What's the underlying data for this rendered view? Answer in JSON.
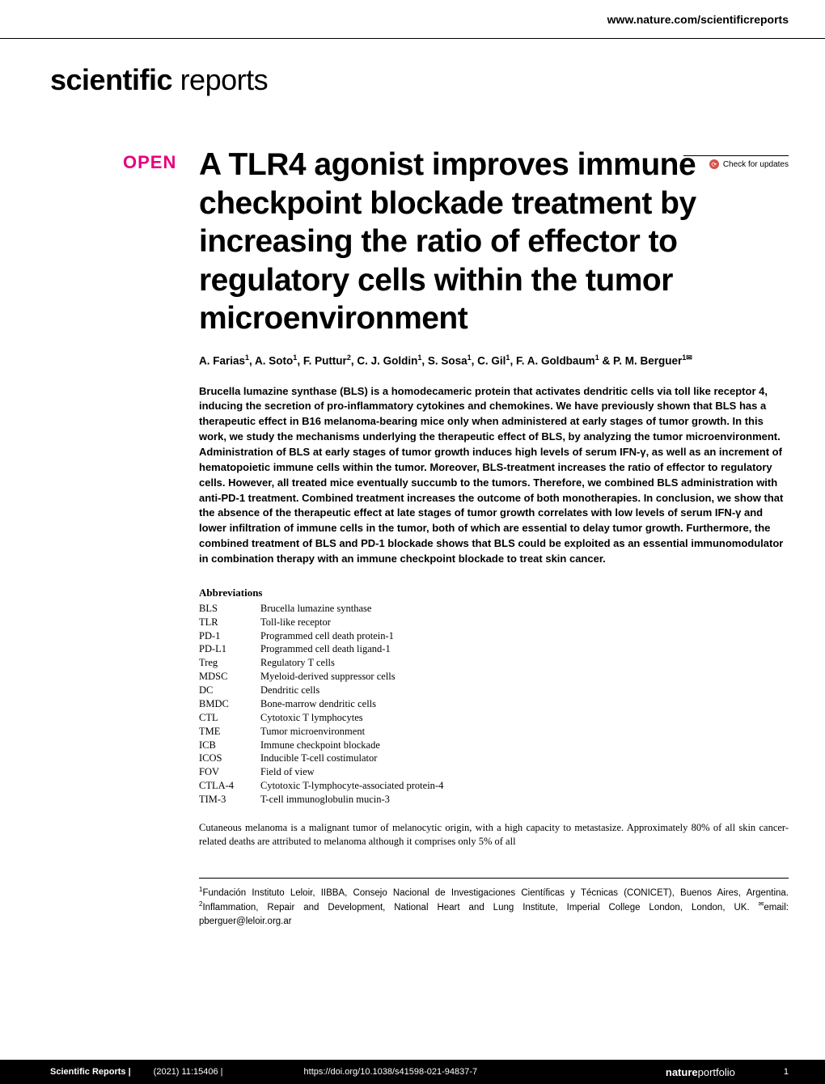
{
  "header": {
    "url": "www.nature.com/scientificreports"
  },
  "journal_logo": {
    "bold": "scientific",
    "light": " reports"
  },
  "check_updates": "Check for updates",
  "open_badge": "OPEN",
  "title": "A TLR4 agonist improves immune checkpoint blockade treatment by increasing the ratio of effector to regulatory cells within the tumor microenvironment",
  "authors_html": "A. Farias<sup>1</sup>, A. Soto<sup>1</sup>, F. Puttur<sup>2</sup>, C. J. Goldin<sup>1</sup>, S. Sosa<sup>1</sup>, C. Gil<sup>1</sup>, F. A. Goldbaum<sup>1</sup> & P. M. Berguer<sup>1✉</sup>",
  "abstract": "Brucella lumazine synthase (BLS) is a homodecameric protein that activates dendritic cells via toll like receptor 4, inducing the secretion of pro-inflammatory cytokines and chemokines. We have previously shown that BLS has a therapeutic effect in B16 melanoma-bearing mice only when administered at early stages of tumor growth. In this work, we study the mechanisms underlying the therapeutic effect of BLS, by analyzing the tumor microenvironment. Administration of BLS at early stages of tumor growth induces high levels of serum IFN-γ, as well as an increment of hematopoietic immune cells within the tumor. Moreover, BLS-treatment increases the ratio of effector to regulatory cells. However, all treated mice eventually succumb to the tumors. Therefore, we combined BLS administration with anti-PD-1 treatment. Combined treatment increases the outcome of both monotherapies. In conclusion, we show that the absence of the therapeutic effect at late stages of tumor growth correlates with low levels of serum IFN-γ and lower infiltration of immune cells in the tumor, both of which are essential to delay tumor growth. Furthermore, the combined treatment of BLS and PD-1 blockade shows that BLS could be exploited as an essential immunomodulator in combination therapy with an immune checkpoint blockade to treat skin cancer.",
  "abbrev_heading": "Abbreviations",
  "abbreviations": [
    {
      "k": "BLS",
      "v": "Brucella lumazine synthase"
    },
    {
      "k": "TLR",
      "v": "Toll-like receptor"
    },
    {
      "k": "PD-1",
      "v": "Programmed cell death protein-1"
    },
    {
      "k": "PD-L1",
      "v": "Programmed cell death ligand-1"
    },
    {
      "k": "Treg",
      "v": "Regulatory T cells"
    },
    {
      "k": "MDSC",
      "v": "Myeloid-derived suppressor cells"
    },
    {
      "k": "DC",
      "v": "Dendritic cells"
    },
    {
      "k": "BMDC",
      "v": "Bone-marrow dendritic cells"
    },
    {
      "k": "CTL",
      "v": "Cytotoxic T lymphocytes"
    },
    {
      "k": "TME",
      "v": "Tumor microenvironment"
    },
    {
      "k": "ICB",
      "v": "Immune checkpoint blockade"
    },
    {
      "k": "ICOS",
      "v": "Inducible T-cell costimulator"
    },
    {
      "k": "FOV",
      "v": "Field of view"
    },
    {
      "k": "CTLA-4",
      "v": "Cytotoxic T-lymphocyte-associated protein-4"
    },
    {
      "k": "TIM-3",
      "v": "T-cell immunoglobulin mucin-3"
    }
  ],
  "body_text": "Cutaneous melanoma is a malignant tumor of melanocytic origin, with a high capacity to metastasize. Approximately 80% of all skin cancer-related deaths are attributed to melanoma although it comprises only 5% of all",
  "affiliations": "<sup>1</sup>Fundación Instituto Leloir, IIBBA, Consejo Nacional de Investigaciones Científicas y Técnicas (CONICET), Buenos Aires, Argentina. <sup>2</sup>Inflammation, Repair and Development, National Heart and Lung Institute, Imperial College London, London, UK. <sup>✉</sup>email: pberguer@leloir.org.ar",
  "footer": {
    "journal": "Scientific Reports",
    "citation": "(2021) 11:15406",
    "doi": "https://doi.org/10.1038/s41598-021-94837-7",
    "portfolio_bold": "nature",
    "portfolio_light": "portfolio",
    "page": "1"
  },
  "colors": {
    "open_pink": "#e6007e",
    "check_red": "#d4534a",
    "footer_bg": "#000000",
    "text": "#000000",
    "bg": "#ffffff"
  }
}
